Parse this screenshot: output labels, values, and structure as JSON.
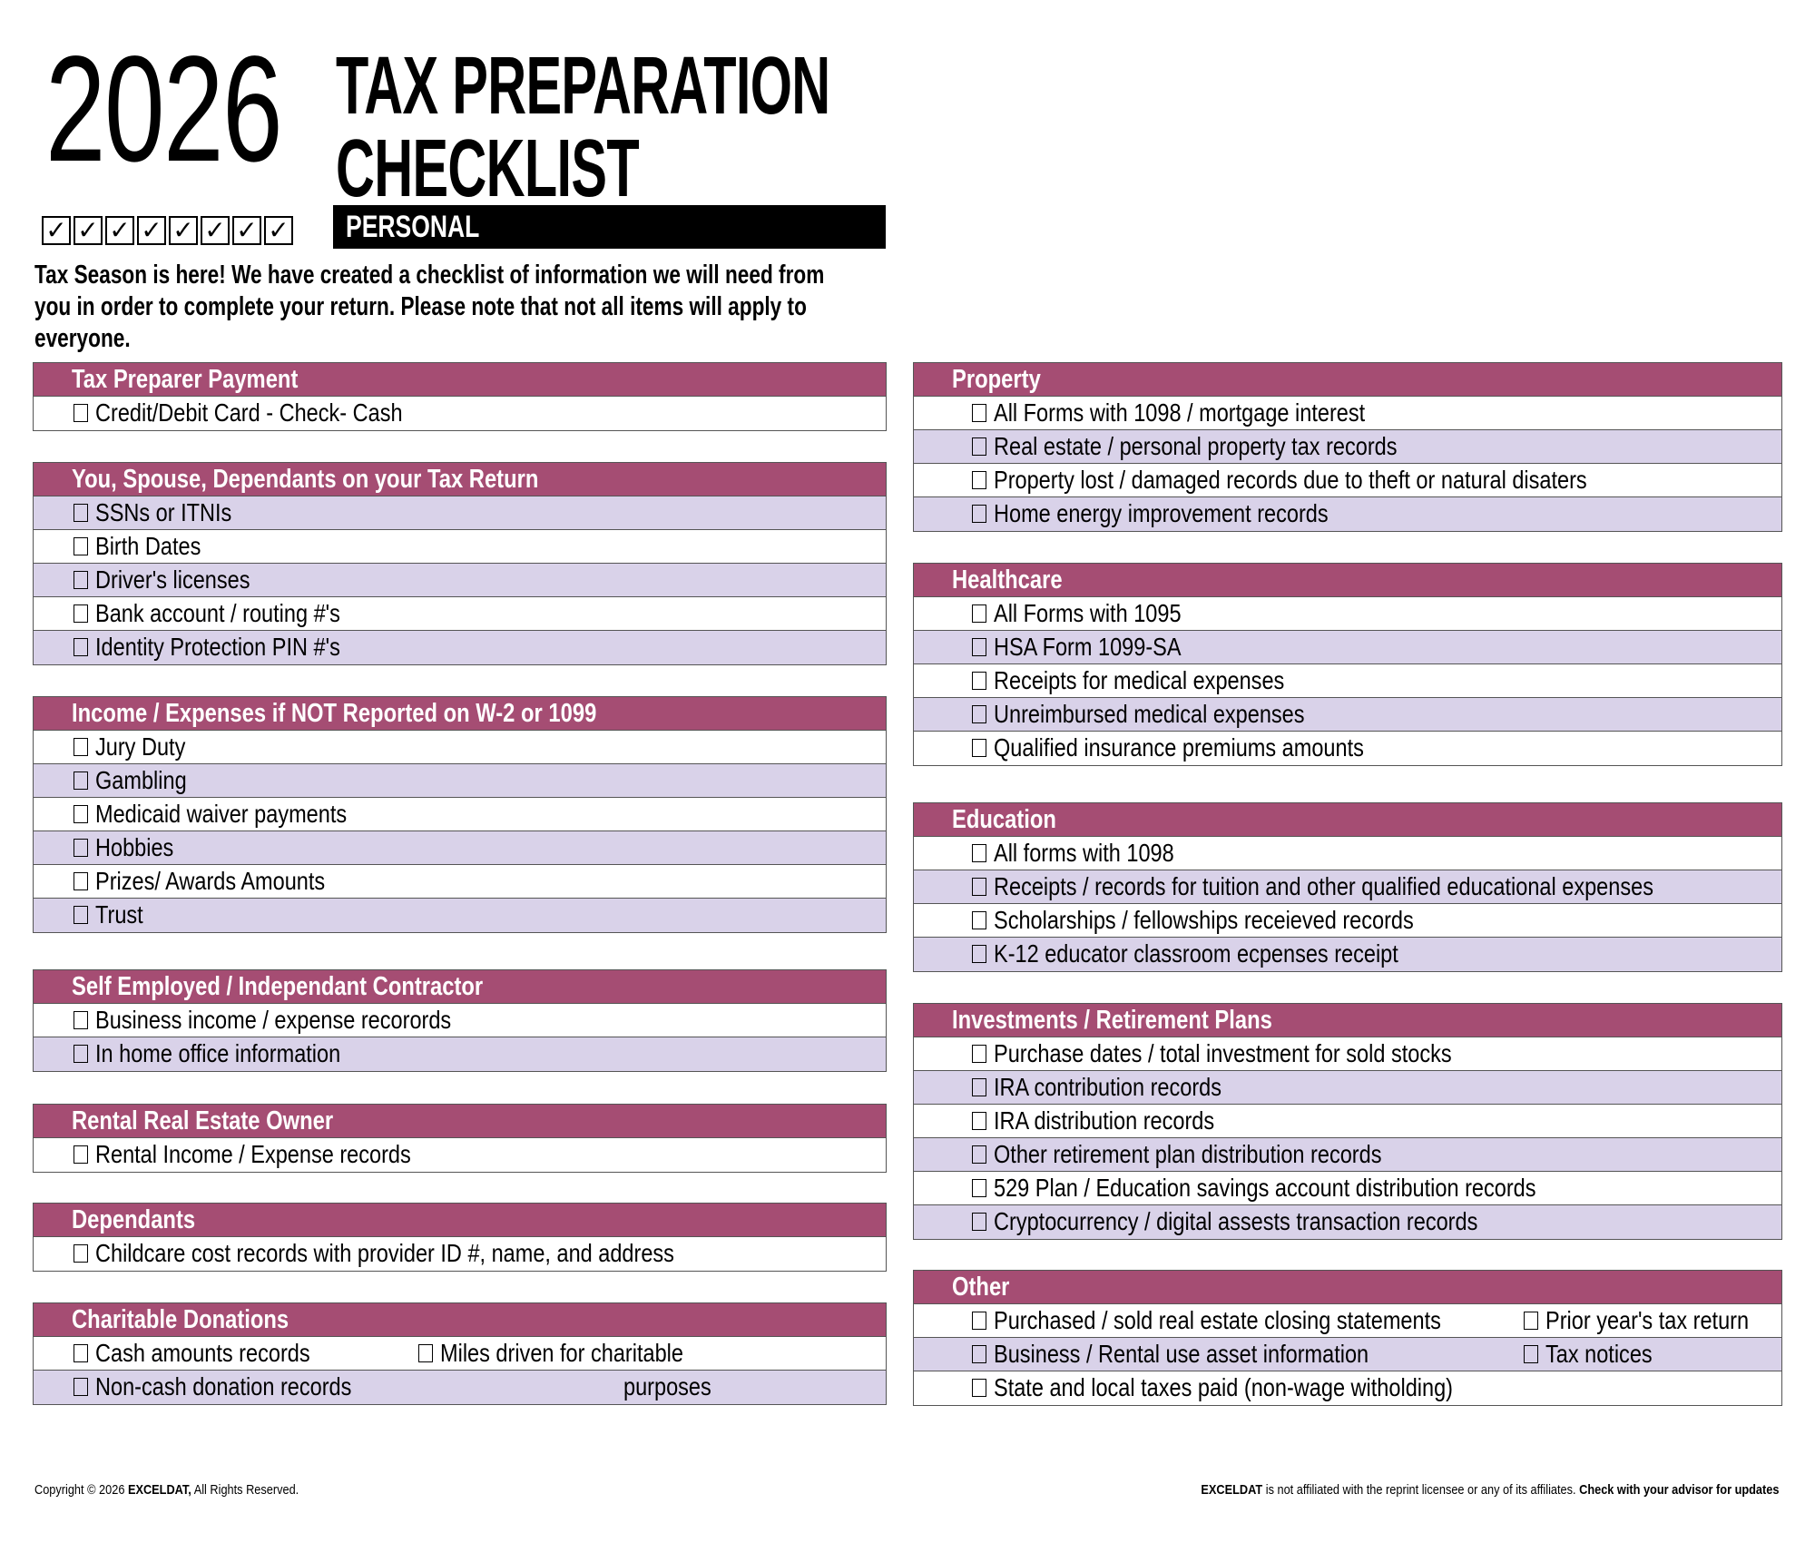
{
  "header": {
    "year": "2026",
    "title_line1": "TAX PREPARATION",
    "title_line2": "CHECKLIST",
    "subtitle": "PERSONAL",
    "decorative_checks": 8,
    "check_glyph": "✓",
    "intro": "Tax Season is here! We have created a checklist of information we will need from you in order to complete your return. Please note that not all items will apply to everyone."
  },
  "colors": {
    "section_header": "#a54d73",
    "alt_row": "#d9d2e9",
    "personal_bar": "#000000"
  },
  "sections": [
    {
      "title": "Tax Preparer Payment",
      "column": "left",
      "rows": [
        [
          "Credit/Debit Card - Check- Cash"
        ]
      ]
    },
    {
      "title": "You, Spouse, Dependants on your Tax Return",
      "column": "left",
      "rows": [
        [
          "SSNs or ITNIs"
        ],
        [
          "Birth Dates"
        ],
        [
          "Driver's licenses"
        ],
        [
          "Bank account / routing #'s"
        ],
        [
          "Identity Protection PIN #'s"
        ]
      ]
    },
    {
      "title": "Income / Expenses if NOT Reported on W-2 or 1099",
      "column": "left",
      "rows": [
        [
          "Jury Duty"
        ],
        [
          "Gambling"
        ],
        [
          "Medicaid waiver payments"
        ],
        [
          "Hobbies"
        ],
        [
          "Prizes/ Awards Amounts"
        ],
        [
          "Trust"
        ]
      ]
    },
    {
      "title": "Self Employed / Independant Contractor",
      "column": "left",
      "rows": [
        [
          "Business income / expense recorords"
        ],
        [
          "In home office information"
        ]
      ]
    },
    {
      "title": "Rental Real Estate Owner",
      "column": "left",
      "rows": [
        [
          "Rental Income / Expense records"
        ]
      ]
    },
    {
      "title": "Dependants",
      "column": "left",
      "rows": [
        [
          "Childcare cost records with provider ID #, name, and address"
        ]
      ]
    },
    {
      "title": "Charitable Donations",
      "column": "left",
      "rows": [
        [
          "Cash amounts records",
          "Miles driven for charitable"
        ],
        [
          "Non-cash donation records",
          "purposes"
        ]
      ]
    },
    {
      "title": "Property",
      "column": "right",
      "rows": [
        [
          "All Forms with 1098 / mortgage interest"
        ],
        [
          "Real estate / personal property tax records"
        ],
        [
          "Property lost / damaged records due to theft or natural disaters"
        ],
        [
          "Home energy improvement records"
        ]
      ]
    },
    {
      "title": "Healthcare",
      "column": "right",
      "rows": [
        [
          "All Forms with 1095"
        ],
        [
          "HSA Form 1099-SA"
        ],
        [
          "Receipts for medical expenses"
        ],
        [
          "Unreimbursed medical expenses"
        ],
        [
          "Qualified insurance premiums amounts"
        ]
      ]
    },
    {
      "title": "Education",
      "column": "right",
      "rows": [
        [
          "All forms with 1098"
        ],
        [
          "Receipts / records for tuition and other qualified educational expenses"
        ],
        [
          "Scholarships / fellowships receieved records"
        ],
        [
          "K-12 educator classroom ecpenses receipt"
        ]
      ]
    },
    {
      "title": "Investments / Retirement Plans",
      "column": "right",
      "rows": [
        [
          "Purchase dates / total investment for sold stocks"
        ],
        [
          "IRA contribution records"
        ],
        [
          "IRA distribution records"
        ],
        [
          "Other retirement plan distribution records"
        ],
        [
          "529 Plan / Education savings account distribution records"
        ],
        [
          "Cryptocurrency / digital assests transaction records"
        ]
      ]
    },
    {
      "title": "Other",
      "column": "right",
      "rows": [
        [
          "Purchased / sold real estate closing statements",
          "Prior year's tax return"
        ],
        [
          "Business / Rental use asset information",
          "Tax notices"
        ],
        [
          "State and local taxes paid (non-wage witholding)"
        ]
      ]
    }
  ],
  "footer": {
    "copyright_pre": "Copyright © 2026 ",
    "copyright_brand": "EXCELDAT,",
    "copyright_post": " All Rights Reserved.",
    "disclaimer_brand": "EXCELDAT",
    "disclaimer_text": " is not affiliated with the reprint licensee or any of its affiliates. ",
    "disclaimer_bold": "Check with your advisor for updates"
  }
}
